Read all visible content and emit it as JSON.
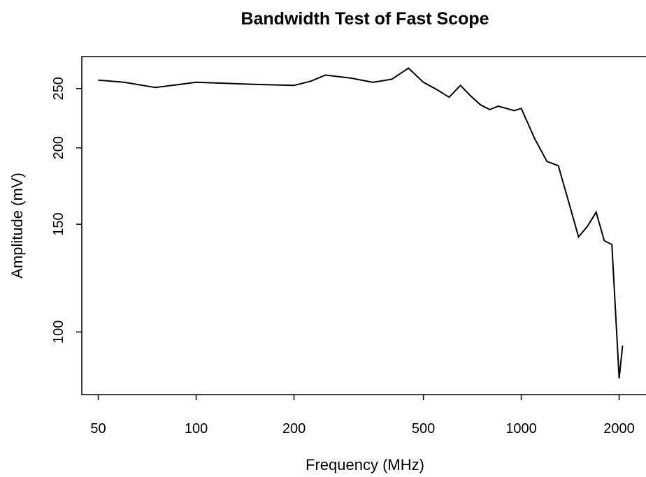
{
  "chart_data": {
    "type": "line",
    "title": "Bandwidth Test of Fast Scope",
    "xlabel": "Frequency (MHz)",
    "ylabel": "Amplitude (mV)",
    "x_scale": "log",
    "y_scale": "log",
    "xlim": [
      44.5,
      2480
    ],
    "ylim": [
      79,
      282
    ],
    "x_ticks": [
      50,
      100,
      200,
      500,
      1000,
      2000
    ],
    "x_tick_labels": [
      "50",
      "100",
      "200",
      "500",
      "1000",
      "2000"
    ],
    "y_ticks": [
      100,
      150,
      200,
      250
    ],
    "y_tick_labels": [
      "100",
      "150",
      "200",
      "250"
    ],
    "grid": false,
    "line_color": "#000000",
    "series": [
      {
        "x": [
          50,
          60,
          75,
          100,
          150,
          200,
          225,
          250,
          300,
          350,
          400,
          450,
          500,
          550,
          600,
          650,
          700,
          750,
          800,
          850,
          900,
          950,
          1000,
          1100,
          1200,
          1300,
          1400,
          1500,
          1600,
          1700,
          1800,
          1900,
          2000,
          2050
        ],
        "y": [
          258,
          256,
          251,
          256,
          254,
          253,
          257,
          263,
          260,
          256,
          259,
          270,
          256,
          249,
          242,
          253,
          243,
          235,
          231,
          234,
          232,
          230,
          232,
          207,
          190,
          187,
          163,
          143,
          149,
          157,
          141,
          139,
          84,
          95
        ]
      }
    ]
  }
}
